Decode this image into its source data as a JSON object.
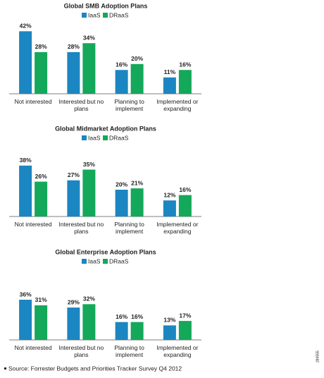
{
  "chart_data": [
    {
      "type": "bar",
      "title": "Global SMB Adoption Plans",
      "categories": [
        "Not interested",
        "Interested but no plans",
        "Planning to implement",
        "Implemented or expanding"
      ],
      "series": [
        {
          "name": "IaaS",
          "color": "#1b86c1",
          "values": [
            42,
            28,
            16,
            11
          ],
          "value_labels": [
            "42%",
            "28%",
            "16%",
            "11%"
          ]
        },
        {
          "name": "DRaaS",
          "color": "#14a85a",
          "values": [
            28,
            34,
            20,
            16
          ],
          "value_labels": [
            "28%",
            "34%",
            "20%",
            "16%"
          ]
        }
      ],
      "ylim": [
        0,
        45
      ]
    },
    {
      "type": "bar",
      "title": "Global Midmarket Adoption Plans",
      "categories": [
        "Not interested",
        "Interested but no plans",
        "Planning to implement",
        "Implemented or expanding"
      ],
      "series": [
        {
          "name": "IaaS",
          "color": "#1b86c1",
          "values": [
            38,
            27,
            20,
            12
          ],
          "value_labels": [
            "38%",
            "27%",
            "20%",
            "12%"
          ]
        },
        {
          "name": "DRaaS",
          "color": "#14a85a",
          "values": [
            26,
            35,
            21,
            16
          ],
          "value_labels": [
            "26%",
            "35%",
            "21%",
            "16%"
          ]
        }
      ],
      "ylim": [
        0,
        50
      ]
    },
    {
      "type": "bar",
      "title": "Global Enterprise Adoption Plans",
      "categories": [
        "Not interested",
        "Interested but no plans",
        "Planning to implement",
        "Implemented or expanding"
      ],
      "series": [
        {
          "name": "IaaS",
          "color": "#1b86c1",
          "values": [
            36,
            29,
            16,
            13
          ],
          "value_labels": [
            "36%",
            "29%",
            "16%",
            "13%"
          ]
        },
        {
          "name": "DRaaS",
          "color": "#14a85a",
          "values": [
            31,
            32,
            16,
            17
          ],
          "value_labels": [
            "31%",
            "32%",
            "16%",
            "17%"
          ]
        }
      ],
      "ylim": [
        0,
        60
      ]
    }
  ],
  "footer": {
    "source": "Source: Forrester Budgets and Priorities Tracker Survey Q4 2012",
    "figure_id": "284555"
  }
}
